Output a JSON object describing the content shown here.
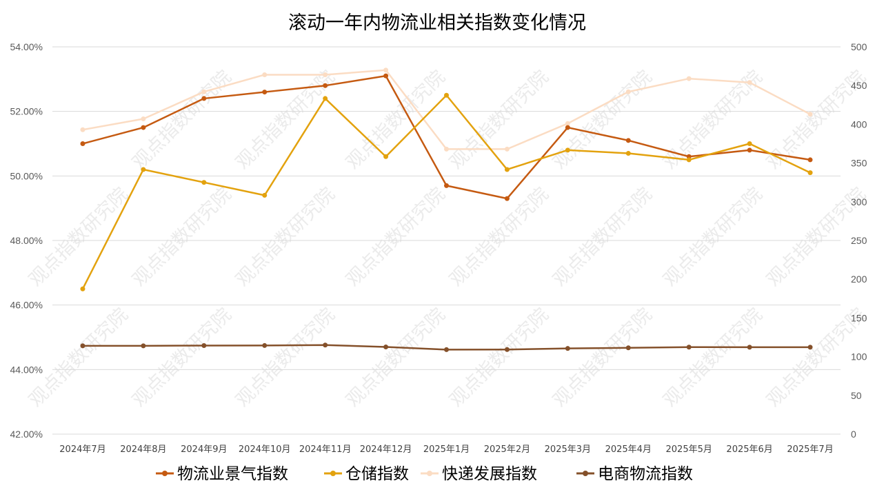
{
  "chart_data": {
    "type": "line",
    "title": "滚动一年内物流业相关指数变化情况",
    "watermark": "观点指数研究院",
    "categories": [
      "2024年7月",
      "2024年8月",
      "2024年9月",
      "2024年10月",
      "2024年11月",
      "2024年12月",
      "2025年1月",
      "2025年2月",
      "2025年3月",
      "2025年4月",
      "2025年5月",
      "2025年6月",
      "2025年7月"
    ],
    "y_left": {
      "range": [
        42,
        54
      ],
      "ticks": [
        "42.00%",
        "44.00%",
        "46.00%",
        "48.00%",
        "50.00%",
        "52.00%",
        "54.00%"
      ]
    },
    "y_right": {
      "range": [
        0,
        500
      ],
      "ticks": [
        "0",
        "50",
        "100",
        "150",
        "200",
        "250",
        "300",
        "350",
        "400",
        "450",
        "500"
      ]
    },
    "grid": "horizontal",
    "legend_position": "bottom",
    "series": [
      {
        "name": "物流业景气指数",
        "axis": "left",
        "color": "#c55a11",
        "values": [
          51.0,
          51.5,
          52.4,
          52.6,
          52.8,
          53.1,
          49.7,
          49.3,
          51.5,
          51.1,
          50.6,
          50.8,
          50.5
        ]
      },
      {
        "name": "仓储指数",
        "axis": "left",
        "color": "#e3a20e",
        "values": [
          46.5,
          50.2,
          49.8,
          49.4,
          52.4,
          50.6,
          52.5,
          50.2,
          50.8,
          50.7,
          50.5,
          51.0,
          50.1
        ]
      },
      {
        "name": "快递发展指数",
        "axis": "right",
        "color": "#fbdcc3",
        "values": [
          393,
          407,
          442,
          464,
          464,
          470,
          368,
          368,
          401,
          442,
          459,
          454,
          413
        ]
      },
      {
        "name": "电商物流指数",
        "axis": "right",
        "color": "#84502a",
        "values": [
          114.0,
          114.0,
          114.3,
          114.4,
          115.0,
          112.5,
          109.1,
          109.2,
          110.6,
          111.4,
          112.3,
          112.2,
          112.2
        ]
      }
    ]
  }
}
